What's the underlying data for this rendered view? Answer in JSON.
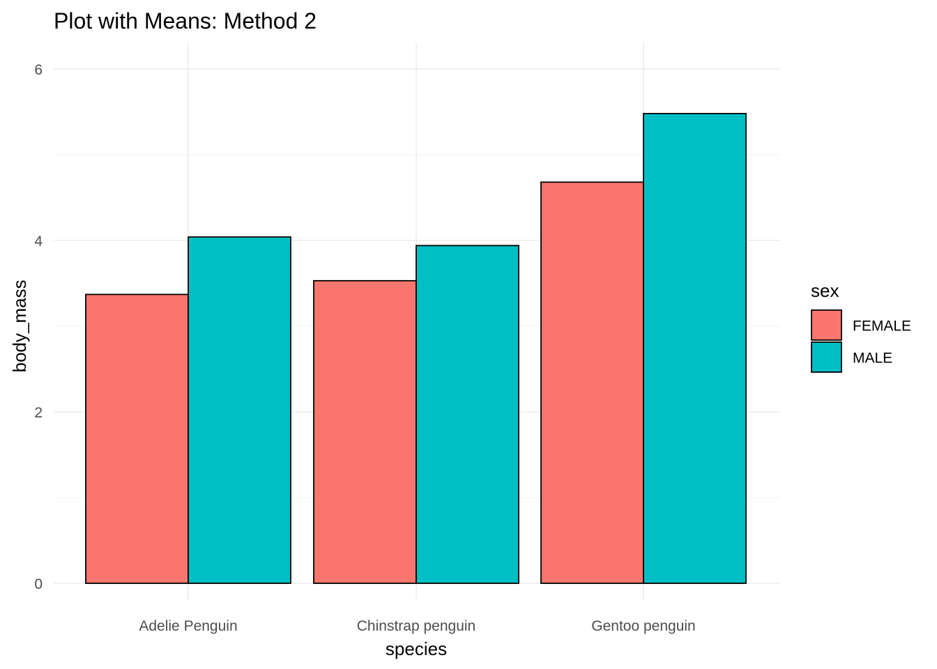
{
  "chart_data": {
    "type": "bar",
    "title": "Plot with Means: Method 2",
    "xlabel": "species",
    "ylabel": "body_mass",
    "categories": [
      "Adelie Penguin",
      "Chinstrap penguin",
      "Gentoo penguin"
    ],
    "series": [
      {
        "name": "FEMALE",
        "color": "#F8766D",
        "values": [
          3.37,
          3.53,
          4.68
        ]
      },
      {
        "name": "MALE",
        "color": "#00BFC4",
        "values": [
          4.04,
          3.94,
          5.48
        ]
      }
    ],
    "ylim": [
      0,
      6.2
    ],
    "yticks": [
      0,
      2,
      4,
      6
    ],
    "ytick_labels": [
      "0",
      "2",
      "4",
      "6"
    ],
    "legend_title": "sex",
    "legend_position": "right",
    "grid": true,
    "bar_outline_color": "#000000",
    "background": "#ffffff"
  }
}
